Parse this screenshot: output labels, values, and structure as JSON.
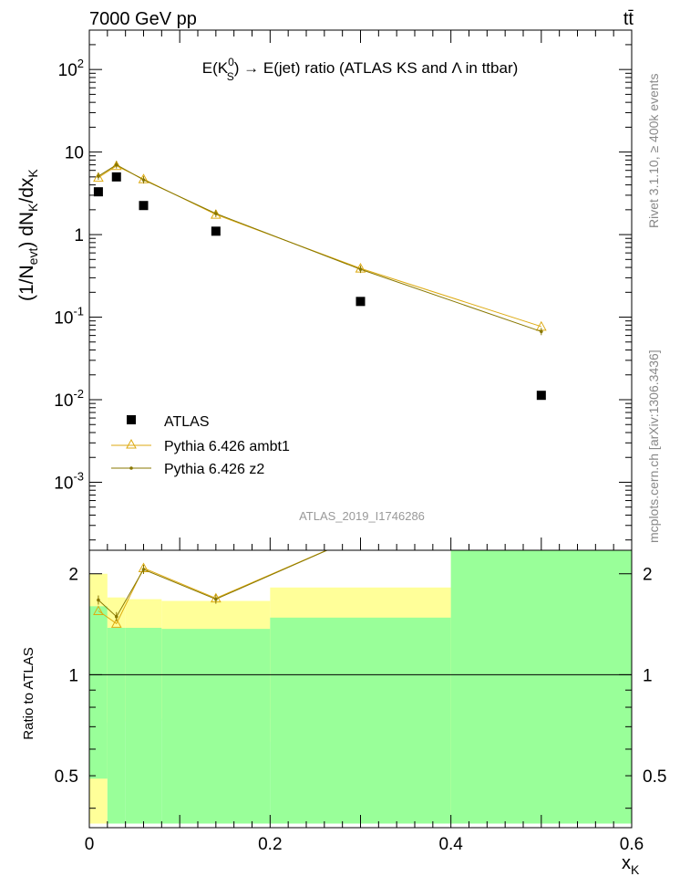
{
  "header": {
    "energy": "7000 GeV pp",
    "process": "tt̄"
  },
  "side_labels": {
    "rivet": "Rivet 3.1.10, ≥ 400k events",
    "mcplots": "mcplots.cern.ch [arXiv:1306.3436]"
  },
  "chart_data": [
    {
      "type": "scatter",
      "panel": "main",
      "title": {
        "prefix": "E(K",
        "sup": "0",
        "sub": "S",
        "suffix": ") → E(jet) ratio (ATLAS KS and Λ in ttbar)"
      },
      "analysis_id": "ATLAS_2019_I1746286",
      "ylabel": {
        "part1": "(1/N",
        "sub1": "evt",
        "part2": ") dN",
        "sub2": "K",
        "part3": "/dx",
        "sub3": "K"
      },
      "yscale": "log",
      "xlim": [
        0,
        0.6
      ],
      "ylim": [
        0.00015,
        300
      ],
      "y_ticks": [
        {
          "value": 0.001,
          "base": "10",
          "exp": "-3"
        },
        {
          "value": 0.01,
          "base": "10",
          "exp": "-2"
        },
        {
          "value": 0.1,
          "base": "10",
          "exp": "-1"
        },
        {
          "value": 1,
          "base": "1",
          "exp": ""
        },
        {
          "value": 10,
          "base": "10",
          "exp": ""
        },
        {
          "value": 100,
          "base": "10",
          "exp": "2"
        }
      ],
      "legend_position": "bottom-left",
      "series": [
        {
          "name": "ATLAS",
          "marker": "square",
          "color": "#000000",
          "x": [
            0.01,
            0.03,
            0.06,
            0.14,
            0.3,
            0.5
          ],
          "y": [
            3.3,
            5.0,
            2.25,
            1.1,
            0.155,
            0.0113
          ]
        },
        {
          "name": "Pythia 6.426 ambt1",
          "marker": "open-triangle",
          "color": "#ddaa11",
          "x": [
            0.01,
            0.03,
            0.06,
            0.14,
            0.3,
            0.5
          ],
          "y": [
            4.9,
            6.8,
            4.7,
            1.75,
            0.39,
            0.077
          ]
        },
        {
          "name": "Pythia 6.426 z2",
          "marker": "dot",
          "color": "#887700",
          "x": [
            0.01,
            0.03,
            0.06,
            0.14,
            0.3,
            0.5
          ],
          "y": [
            5.1,
            7.0,
            4.6,
            1.8,
            0.38,
            0.067
          ]
        }
      ]
    },
    {
      "type": "line",
      "panel": "ratio",
      "ylabel": "Ratio to ATLAS",
      "xlabel": {
        "main": "x",
        "sub": "K"
      },
      "yscale": "log",
      "xlim": [
        0,
        0.6
      ],
      "ylim": [
        0.35,
        2.35
      ],
      "x_ticks": [
        "0",
        "0.2",
        "0.4",
        "0.6"
      ],
      "x_tick_values": [
        0,
        0.2,
        0.4,
        0.6
      ],
      "y_ticks": [
        "0.5",
        "1",
        "2"
      ],
      "y_tick_values": [
        0.5,
        1,
        2
      ],
      "reference_line": 1,
      "bands": [
        {
          "x0": 0.0,
          "x1": 0.02,
          "stat_lo": 0.49,
          "stat_hi": 1.6,
          "tot_lo": 0.36,
          "tot_hi": 2.0
        },
        {
          "x0": 0.02,
          "x1": 0.04,
          "stat_lo": 0.36,
          "stat_hi": 1.38,
          "tot_lo": 0.72,
          "tot_hi": 1.7
        },
        {
          "x0": 0.04,
          "x1": 0.08,
          "stat_lo": 0.36,
          "stat_hi": 1.38,
          "tot_lo": 0.73,
          "tot_hi": 1.68
        },
        {
          "x0": 0.08,
          "x1": 0.2,
          "stat_lo": 0.36,
          "stat_hi": 1.37,
          "tot_lo": 0.74,
          "tot_hi": 1.66
        },
        {
          "x0": 0.2,
          "x1": 0.4,
          "stat_lo": 0.36,
          "stat_hi": 1.48,
          "tot_lo": 0.63,
          "tot_hi": 1.82
        },
        {
          "x0": 0.4,
          "x1": 0.6,
          "stat_lo": 0.36,
          "stat_hi": 2.35,
          "tot_lo": 0.36,
          "tot_hi": 2.35
        }
      ],
      "series": [
        {
          "name": "Pythia 6.426 ambt1",
          "color": "#ddaa11",
          "x": [
            0.01,
            0.03,
            0.06,
            0.14,
            0.3
          ],
          "y": [
            1.55,
            1.42,
            2.08,
            1.69,
            2.6
          ]
        },
        {
          "name": "Pythia 6.426 z2",
          "color": "#887700",
          "x": [
            0.01,
            0.03,
            0.06,
            0.14,
            0.3
          ],
          "y": [
            1.67,
            1.49,
            2.06,
            1.68,
            2.6
          ]
        }
      ]
    }
  ],
  "colors": {
    "band_stat": "#99ff99",
    "band_total": "#ffff99"
  }
}
